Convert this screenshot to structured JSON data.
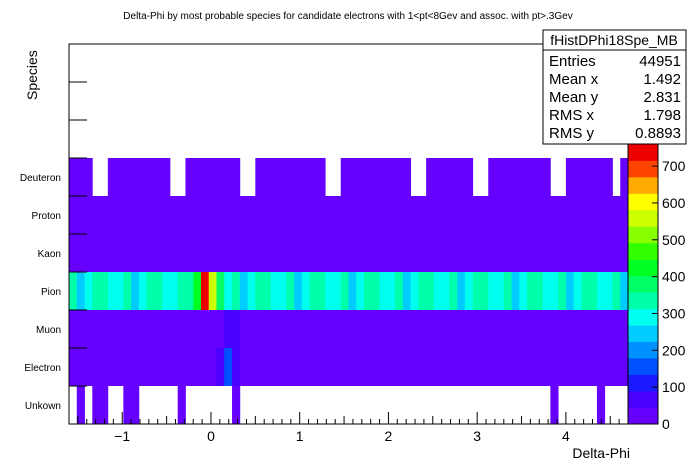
{
  "chart_data": {
    "type": "heatmap",
    "title": "Delta-Phi by most probable species for candidate electrons with 1<pt<8Gev and assoc. with pt>.3Gev",
    "xlabel": "Delta-Phi",
    "ylabel": "Species",
    "xlim": [
      -1.6,
      4.7
    ],
    "x_ticks": [
      "−1",
      "0",
      "1",
      "2",
      "3",
      "4"
    ],
    "x_tick_values": [
      -1,
      0,
      1,
      2,
      3,
      4
    ],
    "categories": [
      "Unkown",
      "Electron",
      "Muon",
      "Pion",
      "Kaon",
      "Proton",
      "Deuteron"
    ],
    "n_rows_axis": 10,
    "n_bins": 72,
    "zlim": [
      0,
      760
    ],
    "z_ticks": [
      "0",
      "100",
      "200",
      "300",
      "400",
      "500",
      "600",
      "700"
    ],
    "z_tick_values": [
      0,
      100,
      200,
      300,
      400,
      500,
      600,
      700
    ],
    "palette": [
      "#6600ff",
      "#4a00ff",
      "#1a1aff",
      "#0050ff",
      "#0090ff",
      "#00ccff",
      "#00ffee",
      "#00ffaa",
      "#00ff66",
      "#00ff22",
      "#33ff00",
      "#88ff00",
      "#ccff00",
      "#ffff00",
      "#ffaa00",
      "#ff4400",
      "#ee0000"
    ],
    "rows": [
      {
        "name": "Unkown",
        "empty_bins": [
          0,
          2,
          5,
          6,
          9,
          10,
          11,
          12,
          13,
          15,
          16,
          17,
          18,
          19,
          20,
          22,
          23,
          24,
          25,
          26,
          27,
          28,
          29,
          30,
          31,
          32,
          33,
          34,
          35,
          36,
          37,
          38,
          39,
          40,
          41,
          42,
          43,
          44,
          45,
          46,
          47,
          48,
          49,
          50,
          51,
          52,
          53,
          54,
          55,
          56,
          57,
          58,
          59,
          60,
          61,
          63,
          64,
          65,
          66,
          67,
          69,
          70,
          71
        ],
        "level": 6
      },
      {
        "name": "Electron",
        "base": 22,
        "hot": {
          "20": 150,
          "19": 60,
          "21": 50
        }
      },
      {
        "name": "Muon",
        "base": 28,
        "hot": {
          "20": 70,
          "21": 65
        }
      },
      {
        "name": "Pion",
        "base": 300,
        "hot": {
          "17": 720,
          "18": 560,
          "16": 420,
          "19": 360,
          "15": 340
        }
      },
      {
        "name": "Kaon",
        "level": 6
      },
      {
        "name": "Proton",
        "level": 6
      },
      {
        "name": "Deuteron",
        "level": 6,
        "empty_bins": [
          3,
          4,
          13,
          14,
          22,
          23,
          33,
          34,
          44,
          45,
          52,
          53,
          62,
          63,
          70
        ]
      }
    ]
  },
  "stats_box": {
    "title": "fHistDPhi18Spe_MB",
    "entries_label": "Entries",
    "entries_value": "44951",
    "meanx_label": "Mean x",
    "meanx_value": "1.492",
    "meany_label": "Mean y",
    "meany_value": "2.831",
    "rmsx_label": "RMS x",
    "rmsx_value": "1.798",
    "rmsy_label": "RMS y",
    "rmsy_value": "0.8893"
  }
}
